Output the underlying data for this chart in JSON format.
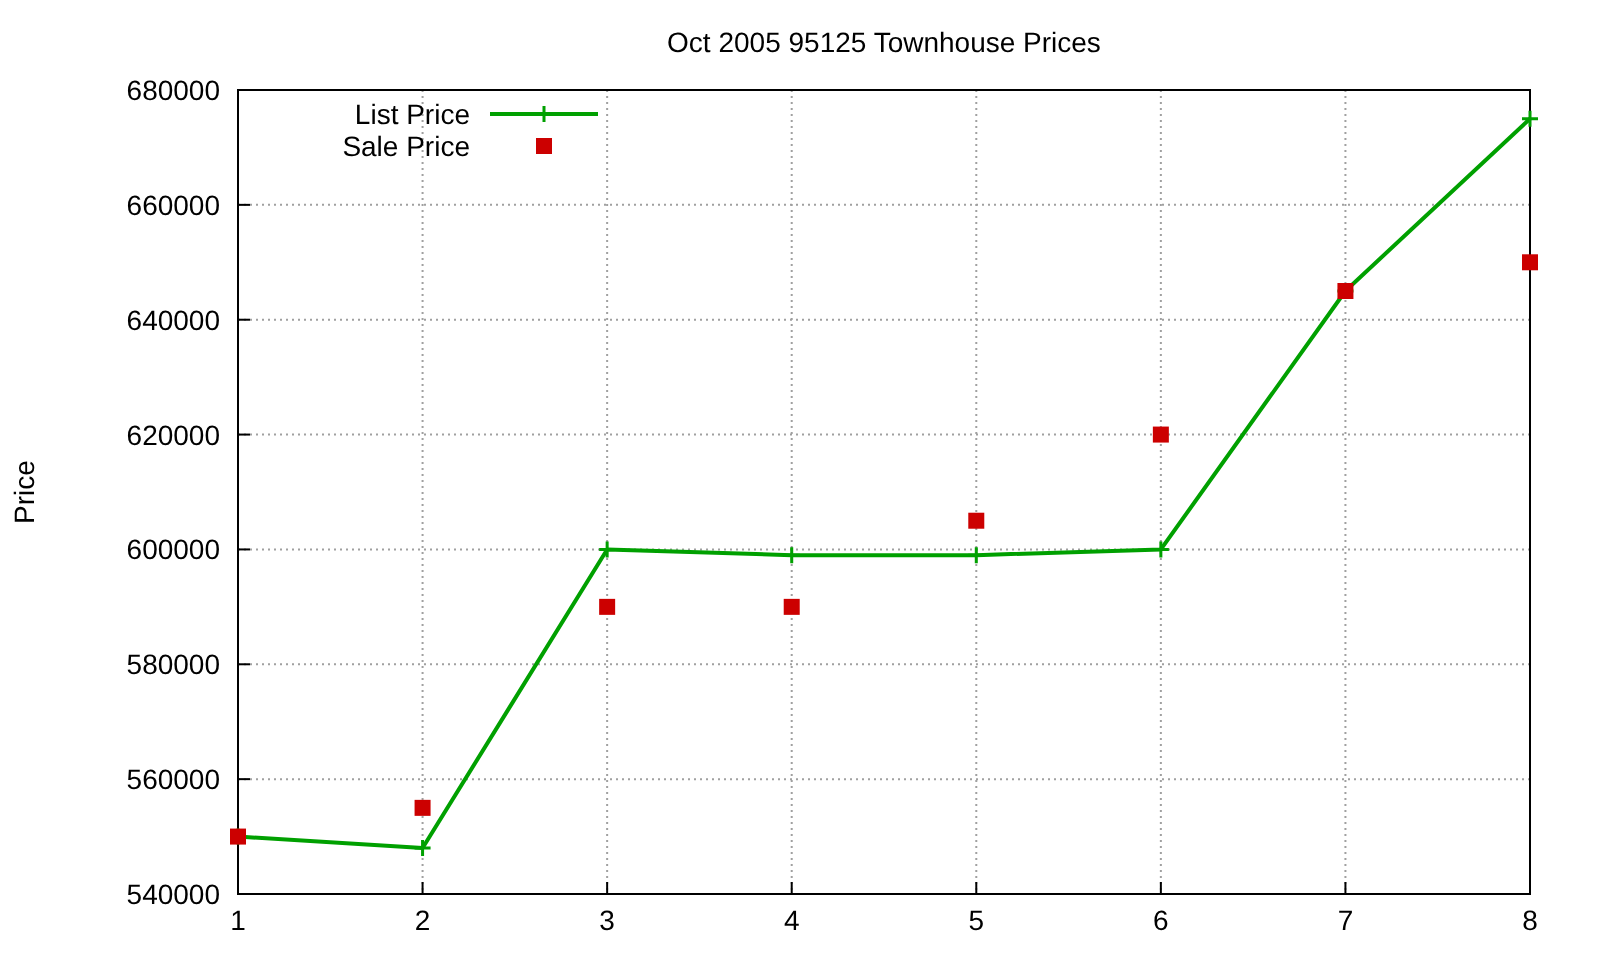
{
  "chart_data": {
    "type": "line",
    "title": "Oct 2005 95125 Townhouse Prices",
    "ylabel": "Price",
    "x": [
      1,
      2,
      3,
      4,
      5,
      6,
      7,
      8
    ],
    "xlim": [
      1,
      8
    ],
    "xticks": [
      1,
      2,
      3,
      4,
      5,
      6,
      7,
      8
    ],
    "ylim": [
      540000,
      680000
    ],
    "yticks": [
      540000,
      560000,
      580000,
      600000,
      620000,
      640000,
      660000,
      680000
    ],
    "grid": true,
    "legend": "top left",
    "line_style": "solid",
    "series": [
      {
        "name": "List Price",
        "marker": "cross",
        "color": "#00a000",
        "values": [
          550000,
          548000,
          600000,
          599000,
          599000,
          600000,
          645000,
          675000
        ]
      },
      {
        "name": "Sale Price",
        "type": "scatter",
        "marker": "square",
        "color": "#cc0000",
        "values": [
          550000,
          555000,
          590000,
          590000,
          605000,
          620000,
          645000,
          650000
        ]
      }
    ]
  }
}
